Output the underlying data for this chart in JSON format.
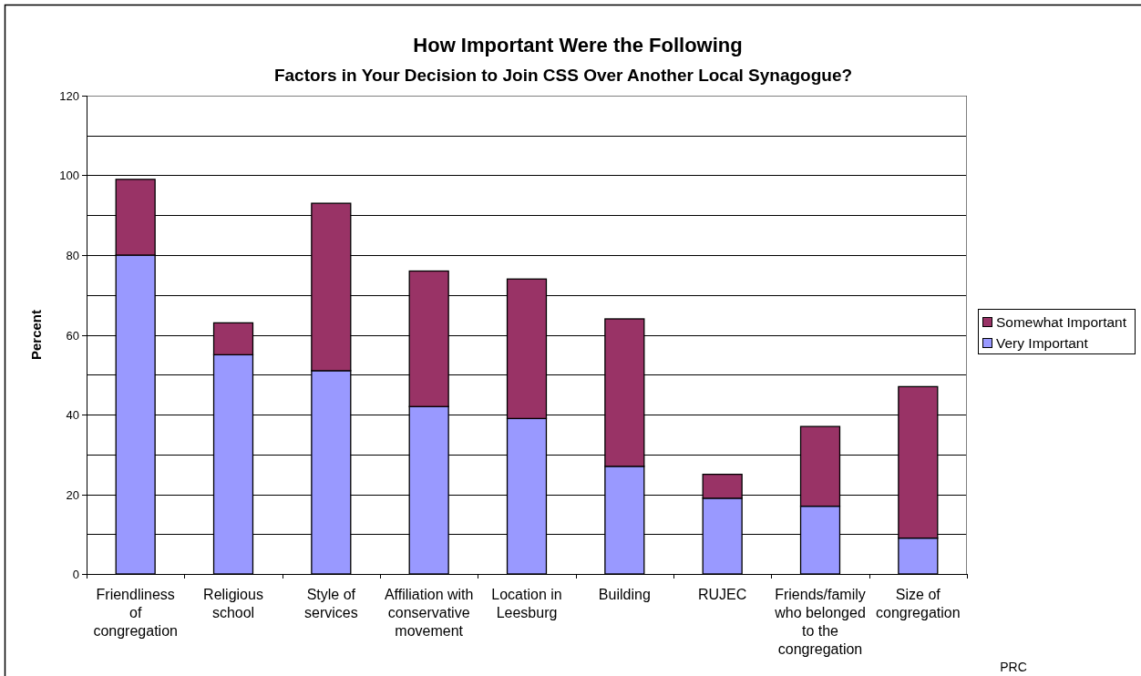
{
  "chart_data": {
    "type": "bar",
    "title": "How Important Were the Following",
    "subtitle": "Factors in Your Decision to Join CSS Over Another Local Synagogue?",
    "ylabel": "Percent",
    "categories": [
      "Friendliness of congregation",
      "Religious school",
      "Style of services",
      "Affiliation with conservative movement",
      "Location in Leesburg",
      "Building",
      "RUJEC",
      "Friends/family who belonged to the congregation",
      "Size of congregation"
    ],
    "series": [
      {
        "name": "Very Important",
        "color": "#9999ff",
        "values": [
          80,
          55,
          51,
          42,
          39,
          27,
          19,
          17,
          9
        ]
      },
      {
        "name": "Somewhat Important",
        "color": "#993366",
        "values": [
          19,
          8,
          42,
          34,
          35,
          37,
          6,
          20,
          38
        ]
      }
    ],
    "stacked": true,
    "ylim": [
      0,
      120
    ],
    "yticks": [
      0,
      {
        "value": 10,
        "label": null
      },
      20,
      {
        "value": 30,
        "label": null
      },
      40,
      {
        "value": 50,
        "label": null
      },
      60,
      {
        "value": 70,
        "label": null
      },
      80,
      {
        "value": 90,
        "label": null
      },
      100,
      {
        "value": 110,
        "label": null
      },
      120
    ],
    "grid": "y",
    "legend": "right",
    "annotations": [
      "PRC"
    ]
  }
}
